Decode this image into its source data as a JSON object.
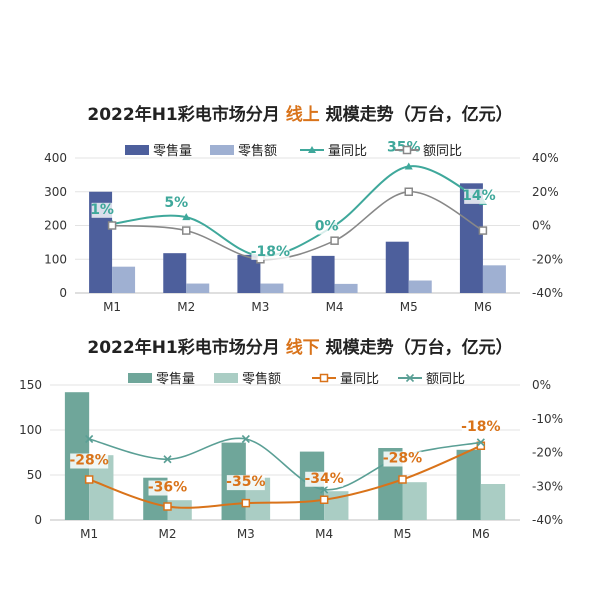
{
  "chart_data": [
    {
      "type": "bar",
      "title_parts": [
        "2022年H1彩电市场分月 ",
        "线上",
        " 规模走势（万台，亿元）"
      ],
      "title_color": "#d9731a",
      "categories": [
        "M1",
        "M2",
        "M3",
        "M4",
        "M5",
        "M6"
      ],
      "ylim": [
        0,
        400
      ],
      "y_ticks": [
        "0",
        "100",
        "200",
        "300",
        "400"
      ],
      "y2lim": [
        -40,
        40
      ],
      "y2_ticks": [
        "-40%",
        "-20%",
        "0%",
        "20%",
        "40%"
      ],
      "bar_series": [
        {
          "name": "零售量",
          "values": [
            300,
            118,
            113,
            110,
            152,
            325
          ],
          "color": "#4d5f9c"
        },
        {
          "name": "零售额",
          "values": [
            78,
            28,
            28,
            27,
            37,
            82
          ],
          "color": "#9fb0d2"
        }
      ],
      "line_series": [
        {
          "name": "量同比",
          "values": [
            1,
            5,
            -18,
            0,
            35,
            14
          ],
          "color": "#3fa89b"
        },
        {
          "name": "额同比",
          "values": [
            0,
            -3,
            -20,
            -9,
            20,
            -3
          ],
          "color": "#888888"
        }
      ],
      "data_labels": [
        "1%",
        "5%",
        "-18%",
        "0%",
        "35%",
        "14%"
      ],
      "label_color": "#3fa89b"
    },
    {
      "type": "bar",
      "title_parts": [
        "2022年H1彩电市场分月 ",
        "线下",
        " 规模走势（万台，亿元）"
      ],
      "title_color": "#d9731a",
      "categories": [
        "M1",
        "M2",
        "M3",
        "M4",
        "M5",
        "M6"
      ],
      "ylim": [
        0,
        150
      ],
      "y_ticks": [
        "0",
        "50",
        "100",
        "150"
      ],
      "y2lim": [
        -40,
        0
      ],
      "y2_ticks": [
        "-40%",
        "-30%",
        "-20%",
        "-10%",
        "0%"
      ],
      "bar_series": [
        {
          "name": "零售量",
          "values": [
            142,
            47,
            86,
            76,
            80,
            78
          ],
          "color": "#6fa69a"
        },
        {
          "name": "零售额",
          "values": [
            72,
            22,
            47,
            32,
            42,
            40
          ],
          "color": "#aacdc4"
        }
      ],
      "line_series": [
        {
          "name": "量同比",
          "values": [
            -28,
            -36,
            -35,
            -34,
            -28,
            -18
          ],
          "color": "#d9731a"
        },
        {
          "name": "额同比",
          "values": [
            -16,
            -22,
            -16,
            -31,
            -21,
            -17
          ],
          "color": "#5a9f95"
        }
      ],
      "data_labels": [
        "-28%",
        "-36%",
        "-35%",
        "-34%",
        "-28%",
        "-18%"
      ],
      "label_color": "#d9731a"
    }
  ]
}
